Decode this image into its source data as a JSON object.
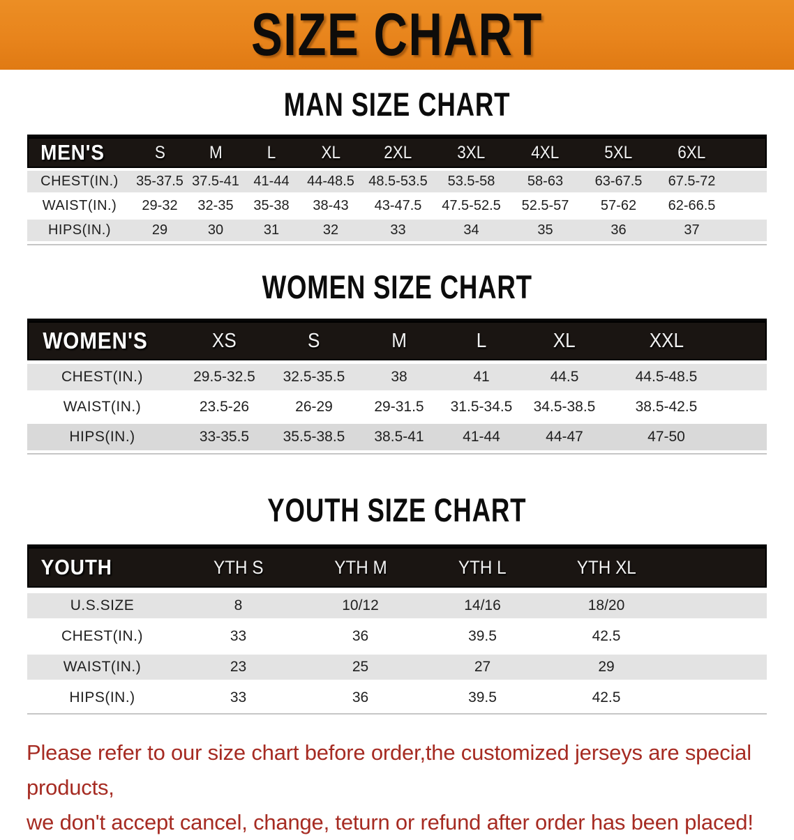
{
  "banner": {
    "title": "SIZE CHART"
  },
  "colors": {
    "banner_orange": "#e8841c",
    "header_black": "#1a1512",
    "row_gray": "#e3e3e3",
    "row_gray_dark": "#d9d9d9",
    "disclaimer_red": "#a62b22"
  },
  "sections": {
    "men": {
      "heading": "MAN SIZE CHART",
      "corner": "MEN'S",
      "sizes": [
        "S",
        "M",
        "L",
        "XL",
        "2XL",
        "3XL",
        "4XL",
        "5XL",
        "6XL"
      ],
      "rows": [
        {
          "label": "CHEST(IN.)",
          "values": [
            "35-37.5",
            "37.5-41",
            "41-44",
            "44-48.5",
            "48.5-53.5",
            "53.5-58",
            "58-63",
            "63-67.5",
            "67.5-72"
          ]
        },
        {
          "label": "WAIST(IN.)",
          "values": [
            "29-32",
            "32-35",
            "35-38",
            "38-43",
            "43-47.5",
            "47.5-52.5",
            "52.5-57",
            "57-62",
            "62-66.5"
          ]
        },
        {
          "label": "HIPS(IN.)",
          "values": [
            "29",
            "30",
            "31",
            "32",
            "33",
            "34",
            "35",
            "36",
            "37"
          ]
        }
      ]
    },
    "women": {
      "heading": "WOMEN SIZE CHART",
      "corner": "WOMEN'S",
      "sizes": [
        "XS",
        "S",
        "M",
        "L",
        "XL",
        "XXL"
      ],
      "rows": [
        {
          "label": "CHEST(IN.)",
          "values": [
            "29.5-32.5",
            "32.5-35.5",
            "38",
            "41",
            "44.5",
            "44.5-48.5"
          ]
        },
        {
          "label": "WAIST(IN.)",
          "values": [
            "23.5-26",
            "26-29",
            "29-31.5",
            "31.5-34.5",
            "34.5-38.5",
            "38.5-42.5"
          ]
        },
        {
          "label": "HIPS(IN.)",
          "values": [
            "33-35.5",
            "35.5-38.5",
            "38.5-41",
            "41-44",
            "44-47",
            "47-50"
          ]
        }
      ]
    },
    "youth": {
      "heading": "YOUTH SIZE CHART",
      "corner": "YOUTH",
      "sizes": [
        "YTH S",
        "YTH M",
        "YTH L",
        "YTH XL"
      ],
      "rows": [
        {
          "label": "U.S.SIZE",
          "values": [
            "8",
            "10/12",
            "14/16",
            "18/20"
          ]
        },
        {
          "label": "CHEST(IN.)",
          "values": [
            "33",
            "36",
            "39.5",
            "42.5"
          ]
        },
        {
          "label": "WAIST(IN.)",
          "values": [
            "23",
            "25",
            "27",
            "29"
          ]
        },
        {
          "label": "HIPS(IN.)",
          "values": [
            "33",
            "36",
            "39.5",
            "42.5"
          ]
        }
      ]
    }
  },
  "disclaimer": {
    "line1": "Please refer to our size chart before order,the customized jerseys are special products,",
    "line2": "we don't accept cancel, change, teturn or refund after order has been placed!"
  }
}
